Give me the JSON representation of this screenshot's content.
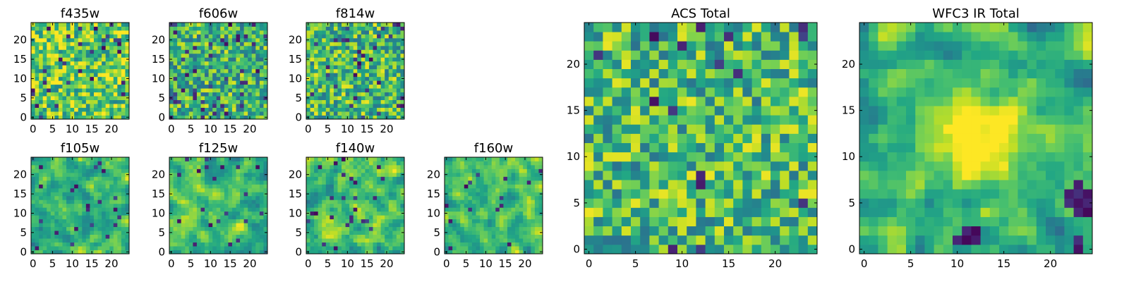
{
  "colors": {
    "colormap": "viridis",
    "frame": "#000000",
    "background": "#ffffff"
  },
  "chart_data": [
    {
      "type": "heatmap",
      "title": "f435w",
      "size": 25,
      "xticks": [
        0,
        5,
        10,
        15,
        20
      ],
      "yticks": [
        0,
        5,
        10,
        15,
        20
      ],
      "xlim": [
        -0.5,
        24.5
      ],
      "ylim": [
        -0.5,
        24.5
      ],
      "seed": 11,
      "smooth": 0,
      "bias": 0.2,
      "dark_frac": 0.05
    },
    {
      "type": "heatmap",
      "title": "f606w",
      "size": 25,
      "xticks": [
        0,
        5,
        10,
        15,
        20
      ],
      "yticks": [
        0,
        5,
        10,
        15,
        20
      ],
      "xlim": [
        -0.5,
        24.5
      ],
      "ylim": [
        -0.5,
        24.5
      ],
      "seed": 23,
      "smooth": 0,
      "bias": 0.0,
      "dark_frac": 0.06
    },
    {
      "type": "heatmap",
      "title": "f814w",
      "size": 25,
      "xticks": [
        0,
        5,
        10,
        15,
        20
      ],
      "yticks": [
        0,
        5,
        10,
        15,
        20
      ],
      "xlim": [
        -0.5,
        24.5
      ],
      "ylim": [
        -0.5,
        24.5
      ],
      "seed": 37,
      "smooth": 0,
      "bias": 0.05,
      "dark_frac": 0.05
    },
    {
      "type": "heatmap",
      "title": "f105w",
      "size": 25,
      "xticks": [
        0,
        5,
        10,
        15,
        20
      ],
      "yticks": [
        0,
        5,
        10,
        15,
        20
      ],
      "xlim": [
        -0.5,
        24.5
      ],
      "ylim": [
        -0.5,
        24.5
      ],
      "seed": 41,
      "smooth": 1,
      "bias": 0.05,
      "dark_frac": 0.04
    },
    {
      "type": "heatmap",
      "title": "f125w",
      "size": 25,
      "xticks": [
        0,
        5,
        10,
        15,
        20
      ],
      "yticks": [
        0,
        5,
        10,
        15,
        20
      ],
      "xlim": [
        -0.5,
        24.5
      ],
      "ylim": [
        -0.5,
        24.5
      ],
      "seed": 53,
      "smooth": 1,
      "bias": 0.05,
      "dark_frac": 0.04
    },
    {
      "type": "heatmap",
      "title": "f140w",
      "size": 25,
      "xticks": [
        0,
        5,
        10,
        15,
        20
      ],
      "yticks": [
        0,
        5,
        10,
        15,
        20
      ],
      "xlim": [
        -0.5,
        24.5
      ],
      "ylim": [
        -0.5,
        24.5
      ],
      "seed": 67,
      "smooth": 1,
      "bias": 0.08,
      "dark_frac": 0.03
    },
    {
      "type": "heatmap",
      "title": "f160w",
      "size": 25,
      "xticks": [
        0,
        5,
        10,
        15,
        20
      ],
      "yticks": [
        0,
        5,
        10,
        15,
        20
      ],
      "xlim": [
        -0.5,
        24.5
      ],
      "ylim": [
        -0.5,
        24.5
      ],
      "seed": 79,
      "smooth": 1,
      "bias": 0.05,
      "dark_frac": 0.03
    },
    {
      "type": "heatmap",
      "title": "ACS Total",
      "size": 25,
      "xticks": [
        0,
        5,
        10,
        15,
        20
      ],
      "yticks": [
        0,
        5,
        10,
        15,
        20
      ],
      "xlim": [
        -0.5,
        24.5
      ],
      "ylim": [
        -0.5,
        24.5
      ],
      "seed": 97,
      "smooth": 0,
      "bias": 0.05,
      "dark_frac": 0.03
    },
    {
      "type": "heatmap",
      "title": "WFC3 IR Total",
      "size": 25,
      "xticks": [
        0,
        5,
        10,
        15,
        20
      ],
      "yticks": [
        0,
        5,
        10,
        15,
        20
      ],
      "xlim": [
        -0.5,
        24.5
      ],
      "ylim": [
        -0.5,
        24.5
      ],
      "seed": 113,
      "smooth": 1,
      "bias": 0.0,
      "dark_frac": 0.0,
      "blob": [
        12,
        12,
        3.5,
        0.45
      ],
      "dark_cells": [
        [
          23,
          5
        ],
        [
          23,
          6
        ],
        [
          22,
          6
        ],
        [
          24,
          6
        ],
        [
          23,
          7
        ],
        [
          22,
          5
        ],
        [
          24,
          5
        ],
        [
          23,
          4
        ],
        [
          24,
          4
        ],
        [
          11,
          2
        ],
        [
          11,
          1
        ],
        [
          12,
          2
        ],
        [
          12,
          1
        ],
        [
          10,
          1
        ],
        [
          23,
          0
        ],
        [
          23,
          1
        ]
      ]
    }
  ]
}
